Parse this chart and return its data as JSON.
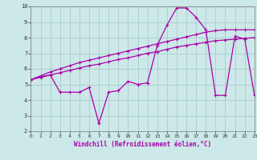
{
  "xlabel": "Windchill (Refroidissement éolien,°C)",
  "background_color": "#cce8e8",
  "grid_color": "#aacccc",
  "line_color": "#aa00aa",
  "x_values": [
    0,
    1,
    2,
    3,
    4,
    5,
    6,
    7,
    8,
    9,
    10,
    11,
    12,
    13,
    14,
    15,
    16,
    17,
    18,
    19,
    20,
    21,
    22,
    23
  ],
  "line1_y": [
    5.3,
    5.5,
    5.6,
    4.5,
    4.5,
    4.5,
    4.8,
    2.5,
    4.5,
    4.6,
    5.2,
    5.0,
    5.1,
    7.5,
    8.8,
    9.9,
    9.9,
    9.3,
    8.5,
    4.3,
    4.3,
    8.1,
    7.9,
    4.3
  ],
  "line2_y": [
    5.3,
    5.55,
    5.8,
    6.0,
    6.2,
    6.4,
    6.55,
    6.7,
    6.85,
    7.0,
    7.15,
    7.3,
    7.45,
    7.6,
    7.75,
    7.9,
    8.05,
    8.2,
    8.35,
    8.45,
    8.5,
    8.5,
    8.5,
    8.5
  ],
  "line3_y": [
    5.3,
    5.45,
    5.6,
    5.75,
    5.9,
    6.05,
    6.2,
    6.3,
    6.45,
    6.6,
    6.7,
    6.85,
    7.0,
    7.1,
    7.25,
    7.4,
    7.5,
    7.6,
    7.7,
    7.8,
    7.85,
    7.9,
    7.95,
    8.0
  ],
  "ylim": [
    2,
    10
  ],
  "xlim": [
    0,
    23
  ],
  "yticks": [
    2,
    3,
    4,
    5,
    6,
    7,
    8,
    9,
    10
  ],
  "xticks": [
    0,
    1,
    2,
    3,
    4,
    5,
    6,
    7,
    8,
    9,
    10,
    11,
    12,
    13,
    14,
    15,
    16,
    17,
    18,
    19,
    20,
    21,
    22,
    23
  ]
}
